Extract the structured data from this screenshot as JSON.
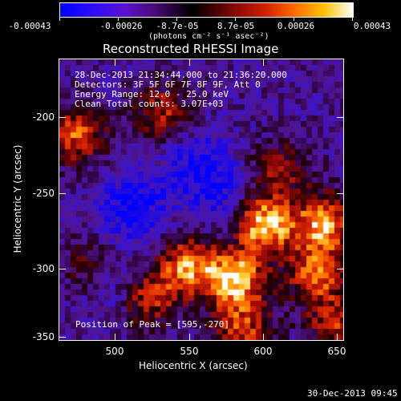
{
  "colorbar": {
    "tick_labels": [
      "-0.00043",
      "-0.00026",
      "-8.7e-05",
      "8.7e-05",
      "0.00026",
      "0.00043"
    ],
    "units_label": "(photons cm⁻² s⁻¹ asec⁻²)",
    "colors": [
      "#0000ff",
      "#4b0a7a",
      "#000000",
      "#8a0a0a",
      "#ff6a00",
      "#ffffff"
    ]
  },
  "plot": {
    "title": "Reconstructed RHESSI Image",
    "info_lines": [
      "28-Dec-2013 21:34:44.000 to 21:36:20.000",
      "Detectors: 3F 5F 6F 7F 8F 9F, Att 0",
      "Energy Range: 12.0 - 25.0 keV",
      "Clean    Total counts: 3.07E+03"
    ],
    "peak_label": "Position of Peak = [595,-270]",
    "xlabel": "Heliocentric X (arcsec)",
    "ylabel": "Heliocentric Y (arcsec)",
    "xticks": [
      "500",
      "550",
      "600",
      "650"
    ],
    "yticks": [
      "-200",
      "-250",
      "-300",
      "-350"
    ],
    "xlim": [
      462,
      655
    ],
    "ylim": [
      -353,
      -160
    ]
  },
  "footer": {
    "timestamp": "30-Dec-2013 09:45"
  },
  "chart_data": {
    "type": "heatmap",
    "title": "Reconstructed RHESSI Image",
    "xlabel": "Heliocentric X (arcsec)",
    "ylabel": "Heliocentric Y (arcsec)",
    "xlim": [
      462,
      655
    ],
    "ylim": [
      -353,
      -160
    ],
    "color_range": [
      -0.00043,
      0.00043
    ],
    "peak": [
      595,
      -270
    ],
    "blobs": [
      {
        "x": 600,
        "y": -272,
        "level": 1.0
      },
      {
        "x": 580,
        "y": -310,
        "level": 0.95
      },
      {
        "x": 548,
        "y": -300,
        "level": 0.8
      },
      {
        "x": 640,
        "y": -270,
        "level": 0.85
      },
      {
        "x": 472,
        "y": -210,
        "level": 0.7
      },
      {
        "x": 635,
        "y": -305,
        "level": 0.75
      },
      {
        "x": 530,
        "y": -195,
        "level": 0.55
      },
      {
        "x": 585,
        "y": -345,
        "level": 0.6
      },
      {
        "x": 520,
        "y": -322,
        "level": 0.65
      },
      {
        "x": 610,
        "y": -232,
        "level": 0.45
      },
      {
        "x": 480,
        "y": -300,
        "level": 0.35
      },
      {
        "x": 648,
        "y": -340,
        "level": 0.55
      }
    ],
    "dips": [
      {
        "x": 510,
        "y": -260,
        "level": 0.9
      },
      {
        "x": 555,
        "y": -230,
        "level": 0.7
      },
      {
        "x": 500,
        "y": -315,
        "level": 0.5
      },
      {
        "x": 570,
        "y": -255,
        "level": 0.45
      }
    ]
  }
}
